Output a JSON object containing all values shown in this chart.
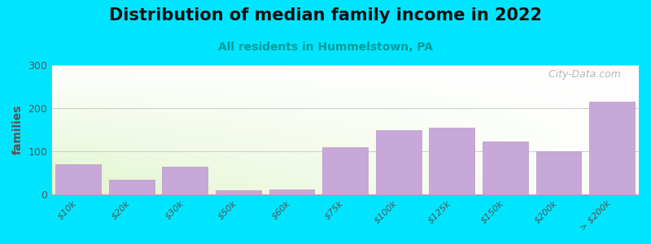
{
  "title": "Distribution of median family income in 2022",
  "subtitle": "All residents in Hummelstown, PA",
  "categories": [
    "$10k",
    "$20k",
    "$30k",
    "$50k",
    "$60k",
    "$75k",
    "$100k",
    "$125k",
    "$150k",
    "$200k",
    "> $200k"
  ],
  "values": [
    70,
    35,
    65,
    10,
    12,
    110,
    150,
    155,
    122,
    100,
    215
  ],
  "bar_color": "#c8a8d8",
  "bar_edge_color": "#b898c8",
  "background_color": "#00e5ff",
  "ylabel": "families",
  "ylim": [
    0,
    300
  ],
  "yticks": [
    0,
    100,
    200,
    300
  ],
  "title_fontsize": 15,
  "subtitle_fontsize": 10,
  "watermark": "  City-Data.com"
}
